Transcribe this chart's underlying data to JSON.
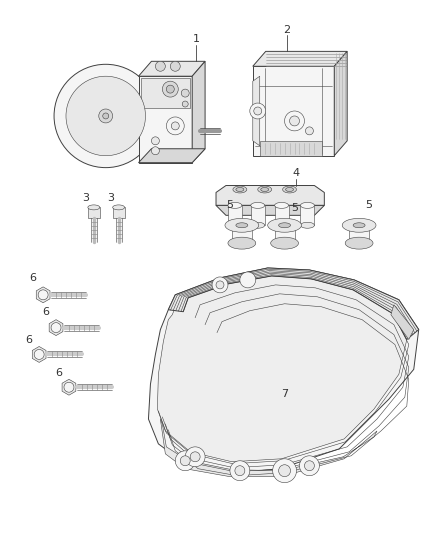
{
  "bg_color": "#ffffff",
  "line_color": "#404040",
  "label_color": "#333333",
  "fig_width": 4.38,
  "fig_height": 5.33,
  "dpi": 100,
  "lw": 0.7,
  "lw_thin": 0.4,
  "lw_thick": 1.1
}
